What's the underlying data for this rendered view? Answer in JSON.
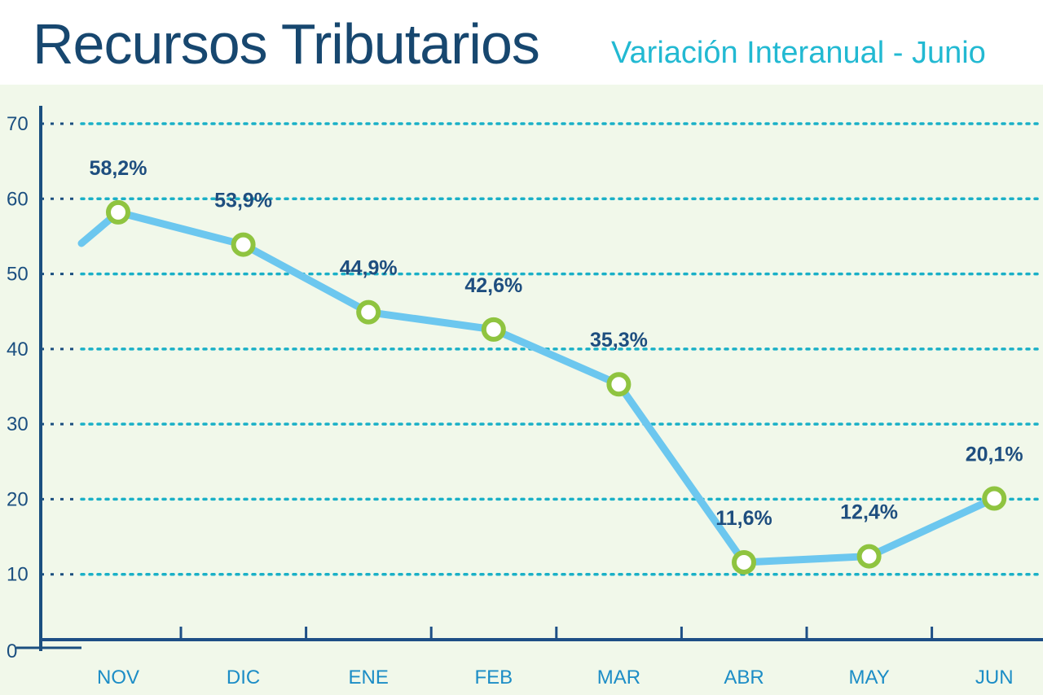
{
  "header": {
    "title": "Recursos Tributarios",
    "subtitle": "Variación Interanual - Junio"
  },
  "chart_data": {
    "type": "line",
    "title": "Recursos Tributarios",
    "subtitle": "Variación Interanual - Junio",
    "xlabel": "",
    "ylabel": "",
    "categories": [
      "NOV",
      "DIC",
      "ENE",
      "FEB",
      "MAR",
      "ABR",
      "MAY",
      "JUN"
    ],
    "series": [
      {
        "values": [
          58.2,
          53.9,
          44.9,
          42.6,
          35.3,
          11.6,
          12.4,
          20.1
        ],
        "labels": [
          "58,2%",
          "53,9%",
          "44,9%",
          "42,6%",
          "35,3%",
          "11,6%",
          "12,4%",
          "20,1%"
        ]
      }
    ],
    "ylim": [
      0,
      70
    ],
    "yticks": [
      0,
      10,
      20,
      30,
      40,
      50,
      60,
      70
    ],
    "grid": "horizontal-dotted",
    "colors": {
      "background": "#f1f8ea",
      "line": "#6cc7ef",
      "marker_stroke": "#8fc440",
      "marker_fill": "#ffffff",
      "grid": "#1ab0c7",
      "axis": "#1b4f80",
      "title": "#17476f",
      "subtitle": "#22b9d2",
      "data_label": "#1e4e7f",
      "x_tick": "#1c8dc6"
    }
  }
}
